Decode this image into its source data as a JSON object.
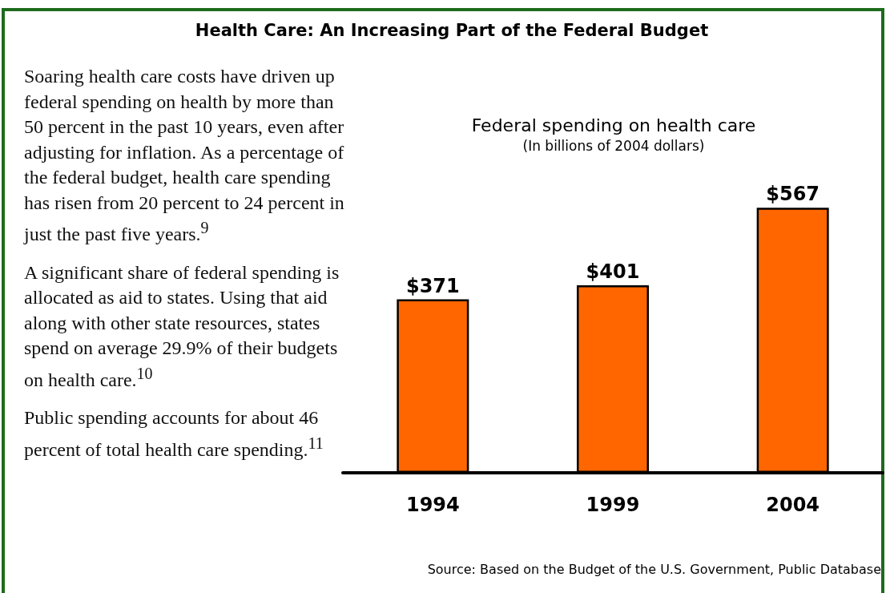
{
  "chart_data": [
    {
      "type": "other",
      "title": "Health Care:  An Increasing Part of the Federal Budget",
      "annotations": [
        "Soaring health care costs have driven up federal spending on health by more than 50 percent in the past 10 years, even after adjusting for inflation.  As a percentage of the federal budget, health care spending has risen from 20 percent to 24 percent in just the past five years.$^{9}$",
        "A significant share of federal spending is allocated as aid to states.  Using that aid along with other state resources, states spend on average 29.9% of their budgets on health care.$^{10}$",
        "Public spending accounts for about 46 percent of total health care spending.$^{11}$"
      ]
    },
    {
      "type": "bar",
      "title": "Federal spending on health care",
      "subtitle": "(In billions of 2004 dollars)",
      "categories": [
        "1994",
        "1999",
        "2004"
      ],
      "values": [
        371,
        401,
        567
      ],
      "value_labels": [
        "$371",
        "$401",
        "$567"
      ],
      "color": "#ff6600",
      "annotations": [
        "Source: Based on the Budget of the U.S. Government, Public Database"
      ]
    }
  ]
}
